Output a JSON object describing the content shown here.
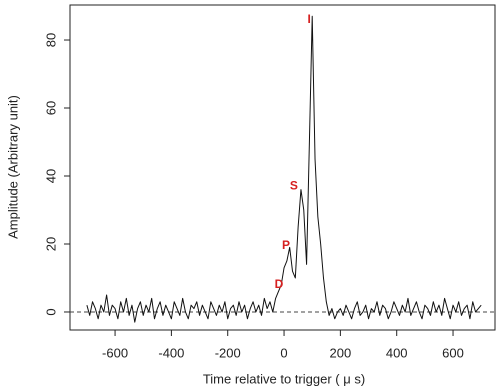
{
  "chart_data": {
    "type": "line",
    "xlabel": "Time relative to trigger ( μ s)",
    "ylabel": "Amplitude (Arbitrary unit)",
    "x": [
      -700,
      -690,
      -680,
      -670,
      -660,
      -650,
      -640,
      -630,
      -620,
      -610,
      -600,
      -590,
      -580,
      -570,
      -560,
      -550,
      -540,
      -530,
      -520,
      -510,
      -500,
      -490,
      -480,
      -470,
      -460,
      -450,
      -440,
      -430,
      -420,
      -410,
      -400,
      -390,
      -380,
      -370,
      -360,
      -350,
      -340,
      -330,
      -320,
      -310,
      -300,
      -290,
      -280,
      -270,
      -260,
      -250,
      -240,
      -230,
      -220,
      -210,
      -200,
      -190,
      -180,
      -170,
      -160,
      -150,
      -140,
      -130,
      -120,
      -110,
      -100,
      -90,
      -80,
      -70,
      -60,
      -50,
      -40,
      -30,
      -20,
      -10,
      0,
      10,
      20,
      30,
      40,
      50,
      60,
      70,
      80,
      90,
      100,
      110,
      120,
      130,
      140,
      150,
      160,
      170,
      180,
      190,
      200,
      210,
      220,
      230,
      240,
      250,
      260,
      270,
      280,
      290,
      300,
      310,
      320,
      330,
      340,
      350,
      360,
      370,
      380,
      390,
      400,
      410,
      420,
      430,
      440,
      450,
      460,
      470,
      480,
      490,
      500,
      510,
      520,
      530,
      540,
      550,
      560,
      570,
      580,
      590,
      600,
      610,
      620,
      630,
      640,
      650,
      660,
      670,
      680,
      690,
      700
    ],
    "series": [
      {
        "color": "#111111",
        "values": [
          2,
          -1,
          3,
          1,
          -2,
          2,
          0,
          5,
          -1,
          2,
          1,
          -2,
          3,
          0,
          4,
          -1,
          2,
          -3,
          1,
          3,
          -1,
          2,
          0,
          4,
          -2,
          1,
          3,
          -1,
          2,
          0,
          -2,
          3,
          1,
          -1,
          4,
          0,
          -2,
          2,
          1,
          3,
          -1,
          2,
          0,
          -2,
          3,
          1,
          -1,
          2,
          0,
          3,
          -2,
          1,
          2,
          -1,
          3,
          0,
          2,
          -2,
          1,
          3,
          0,
          2,
          -1,
          4,
          1,
          3,
          0,
          4,
          6,
          8,
          13,
          15,
          19,
          12,
          10,
          25,
          36,
          30,
          14,
          50,
          87,
          45,
          28,
          20,
          10,
          3,
          -1,
          1,
          -2,
          0,
          1,
          -1,
          2,
          0,
          -2,
          1,
          3,
          -1,
          0,
          2,
          -2,
          1,
          0,
          3,
          -1,
          2,
          1,
          -2,
          0,
          3,
          1,
          -1,
          2,
          0,
          4,
          -1,
          1,
          3,
          0,
          -2,
          2,
          1,
          -1,
          3,
          0,
          2,
          -1,
          4,
          1,
          -2,
          2,
          0,
          3,
          -1,
          1,
          2,
          -2,
          3,
          0,
          1,
          2
        ]
      }
    ],
    "xlim": [
      -760,
      749
    ],
    "ylim": [
      -5.3,
      90.3
    ],
    "xticks": [
      -600,
      -400,
      -200,
      0,
      200,
      400,
      600
    ],
    "yticks": [
      0,
      20,
      40,
      60,
      80
    ],
    "reference_line": 0,
    "annotations": [
      {
        "text": "D",
        "x": -18,
        "y": 8
      },
      {
        "text": "P",
        "x": 7,
        "y": 19.5
      },
      {
        "text": "S",
        "x": 35,
        "y": 37
      },
      {
        "text": "I",
        "x": 89,
        "y": 86
      }
    ]
  }
}
